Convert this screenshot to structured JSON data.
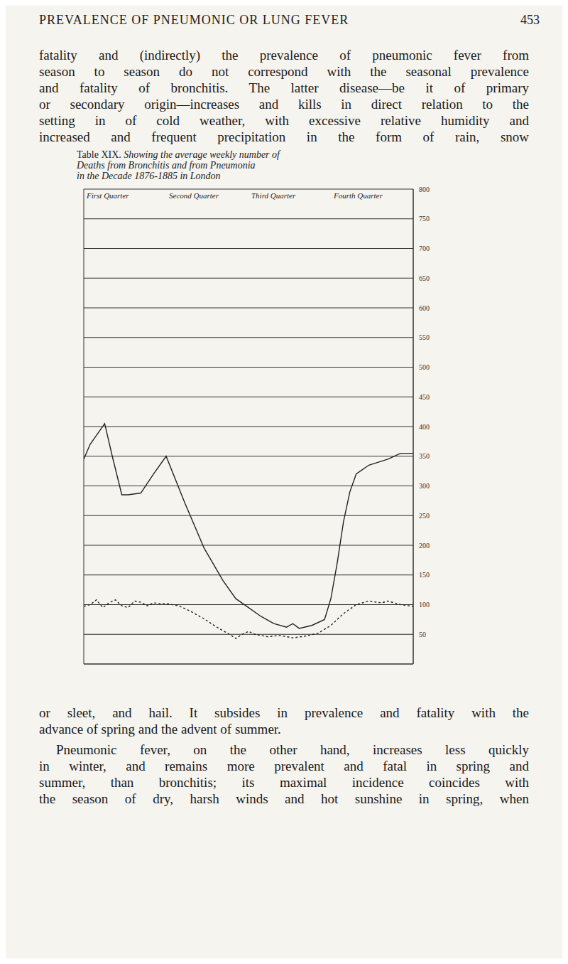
{
  "header": {
    "title": "PREVALENCE OF PNEUMONIC OR LUNG FEVER",
    "page": "453"
  },
  "text_above": [
    "fatality and (indirectly) the prevalence of pneumonic fever from",
    "season to season do not correspond with the seasonal prevalence",
    "and fatality of bronchitis. The latter disease—be it of primary",
    "or secondary origin—increases and kills in direct relation to the",
    "setting in of cold weather, with excessive relative humidity and",
    "increased and frequent precipitation in the form of rain, snow"
  ],
  "chart_data": {
    "type": "line",
    "title": [
      "Table XIX.",
      "Showing the average weekly number of",
      "Deaths from Bronchitis and from Pneumonia",
      "in the Decade 1876-1885 in London"
    ],
    "quarters": [
      "First Quarter",
      "Second Quarter",
      "Third Quarter",
      "Fourth Quarter"
    ],
    "xlim": [
      0,
      52
    ],
    "xticks": [
      0,
      13,
      26,
      39,
      52
    ],
    "ylim": [
      0,
      800
    ],
    "yticks": [
      50,
      100,
      150,
      200,
      250,
      300,
      350,
      400,
      450,
      500,
      550,
      600,
      650,
      700,
      750,
      800
    ],
    "grid": true,
    "tick_labels": "y",
    "series": [
      {
        "color": "#222222",
        "line_style": "solid",
        "x": [
          0,
          1,
          3.3,
          4.5,
          6,
          7,
          9,
          11,
          13,
          16,
          19,
          22,
          24,
          26,
          28,
          30,
          32,
          33,
          34,
          36,
          38,
          39,
          40,
          41,
          42,
          43,
          45,
          48,
          50,
          52
        ],
        "values": [
          345,
          370,
          405,
          350,
          285,
          285,
          288,
          320,
          350,
          270,
          195,
          140,
          110,
          95,
          80,
          68,
          62,
          68,
          60,
          65,
          75,
          110,
          170,
          240,
          290,
          320,
          335,
          345,
          355,
          355
        ]
      },
      {
        "color": "#222222",
        "line_style": "dashed",
        "x": [
          0,
          1,
          2,
          3,
          4,
          5,
          6,
          7,
          8,
          9,
          10,
          11,
          12,
          13,
          15,
          17,
          19,
          21,
          23,
          24,
          25,
          26,
          27,
          29,
          31,
          33,
          35,
          37,
          39,
          41,
          43,
          45,
          47,
          48,
          50,
          52
        ],
        "values": [
          97,
          100,
          108,
          95,
          103,
          108,
          98,
          95,
          106,
          104,
          98,
          103,
          102,
          102,
          98,
          88,
          76,
          62,
          50,
          43,
          50,
          55,
          50,
          46,
          48,
          44,
          47,
          52,
          65,
          85,
          100,
          106,
          103,
          106,
          100,
          97
        ]
      }
    ]
  },
  "text_below": [
    "or sleet, and hail. It subsides in prevalence and fatality with the",
    "advance of spring and the advent of summer.",
    "Pneumonic fever, on the other hand, increases less quickly",
    "in winter, and remains more prevalent and fatal in spring and",
    "summer, than bronchitis; its maximal incidence coincides with",
    "the season of dry, harsh winds and hot sunshine in spring, when"
  ]
}
